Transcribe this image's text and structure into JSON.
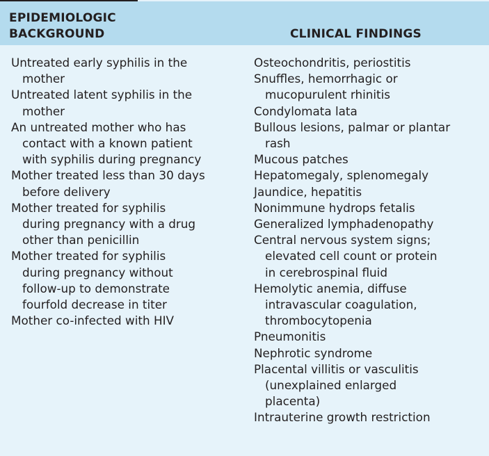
{
  "header": {
    "left": "EPIDEMIOLOGIC\nBACKGROUND",
    "right": "CLINICAL FINDINGS"
  },
  "epidemiologic_background": [
    {
      "lines": [
        "Untreated early syphilis in the",
        "mother"
      ]
    },
    {
      "lines": [
        "Untreated latent syphilis in the",
        "mother"
      ]
    },
    {
      "lines": [
        "An untreated mother who has",
        "contact with a known patient",
        "with syphilis during pregnancy"
      ]
    },
    {
      "lines": [
        "Mother treated less than 30 days",
        "before delivery"
      ]
    },
    {
      "lines": [
        "Mother treated for syphilis",
        "during pregnancy with a drug",
        "other than penicillin"
      ]
    },
    {
      "lines": [
        "Mother treated for syphilis",
        "during pregnancy without",
        "follow-up to demonstrate",
        "fourfold decrease in titer"
      ]
    },
    {
      "lines": [
        "Mother co-infected with HIV"
      ]
    }
  ],
  "clinical_findings": [
    {
      "lines": [
        "Osteochondritis, periostitis"
      ]
    },
    {
      "lines": [
        "Snuffles, hemorrhagic or",
        "mucopurulent rhinitis"
      ]
    },
    {
      "lines": [
        "Condylomata lata"
      ]
    },
    {
      "lines": [
        "Bullous lesions, palmar or plantar",
        "rash"
      ]
    },
    {
      "lines": [
        "Mucous patches"
      ]
    },
    {
      "lines": [
        "Hepatomegaly, splenomegaly"
      ]
    },
    {
      "lines": [
        "Jaundice, hepatitis"
      ]
    },
    {
      "lines": [
        "Nonimmune hydrops fetalis"
      ]
    },
    {
      "lines": [
        "Generalized lymphadenopathy"
      ]
    },
    {
      "lines": [
        "Central nervous system signs;",
        "elevated cell count or protein",
        "in cerebrospinal fluid"
      ]
    },
    {
      "lines": [
        "Hemolytic anemia, diffuse",
        "intravascular coagulation,",
        "thrombocytopenia"
      ]
    },
    {
      "lines": [
        "Pneumonitis"
      ]
    },
    {
      "lines": [
        "Nephrotic syndrome"
      ]
    },
    {
      "lines": [
        "Placental villitis or vasculitis",
        "(unexplained enlarged",
        "placenta)"
      ]
    },
    {
      "lines": [
        "Intrauterine growth restriction"
      ]
    }
  ],
  "colors": {
    "header_background": "#b4dbee",
    "body_background": "#e6f3fa",
    "text": "#231f20"
  }
}
